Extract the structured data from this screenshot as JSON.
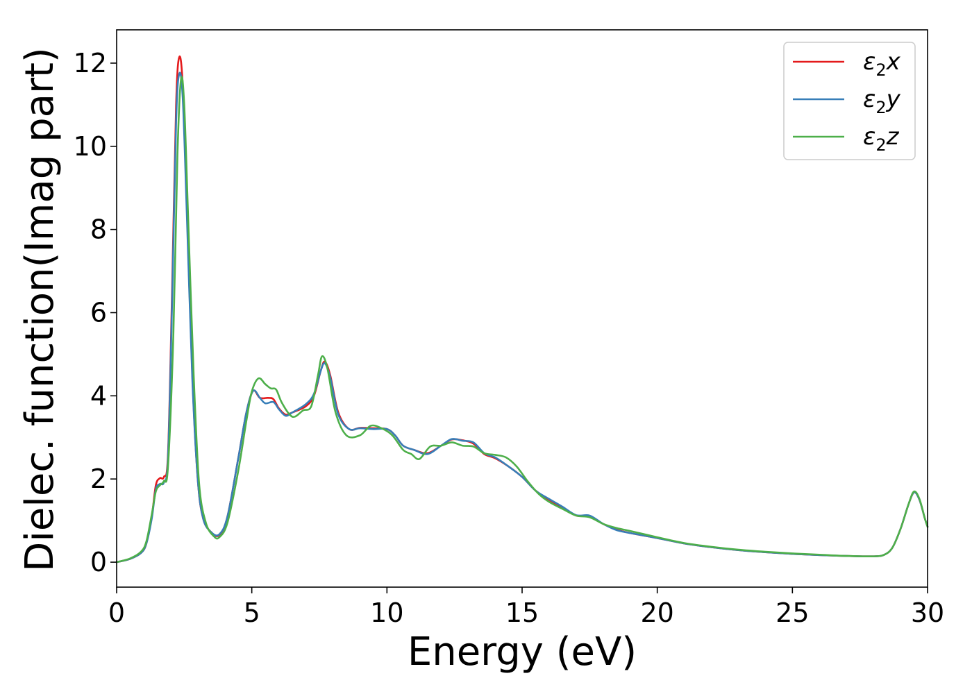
{
  "chart_data": {
    "type": "line",
    "xlabel": "Energy (eV)",
    "ylabel": "Dielec. function(Imag part)",
    "xlim": [
      0,
      30
    ],
    "ylim": [
      -0.6,
      12.8
    ],
    "xticks": [
      0,
      5,
      10,
      15,
      20,
      25,
      30
    ],
    "xtick_labels": [
      "0",
      "5",
      "10",
      "15",
      "20",
      "25",
      "30"
    ],
    "yticks": [
      0,
      2,
      4,
      6,
      8,
      10,
      12
    ],
    "ytick_labels": [
      "0",
      "2",
      "4",
      "6",
      "8",
      "10",
      "12"
    ],
    "grid": false,
    "legend_position": "top-right",
    "series": [
      {
        "name": "ε₂x",
        "legend_base": "ε",
        "legend_sub": "2",
        "legend_axis": "x",
        "color": "#e41a1c",
        "points": [
          [
            0,
            0
          ],
          [
            0.5,
            0.08
          ],
          [
            0.9,
            0.22
          ],
          [
            1.1,
            0.45
          ],
          [
            1.3,
            1.1
          ],
          [
            1.45,
            1.85
          ],
          [
            1.6,
            2.02
          ],
          [
            1.75,
            2.05
          ],
          [
            1.9,
            2.6
          ],
          [
            2.05,
            6.5
          ],
          [
            2.2,
            11.0
          ],
          [
            2.32,
            12.15
          ],
          [
            2.45,
            11.4
          ],
          [
            2.6,
            8.5
          ],
          [
            2.8,
            4.5
          ],
          [
            3.0,
            2.0
          ],
          [
            3.2,
            1.05
          ],
          [
            3.5,
            0.72
          ],
          [
            3.8,
            0.65
          ],
          [
            4.1,
            1.1
          ],
          [
            4.5,
            2.5
          ],
          [
            4.8,
            3.6
          ],
          [
            5.05,
            4.12
          ],
          [
            5.3,
            3.95
          ],
          [
            5.6,
            3.95
          ],
          [
            5.8,
            3.92
          ],
          [
            6.0,
            3.7
          ],
          [
            6.25,
            3.55
          ],
          [
            6.5,
            3.6
          ],
          [
            7.0,
            3.75
          ],
          [
            7.3,
            4.0
          ],
          [
            7.55,
            4.6
          ],
          [
            7.7,
            4.82
          ],
          [
            7.9,
            4.5
          ],
          [
            8.2,
            3.6
          ],
          [
            8.6,
            3.2
          ],
          [
            9.0,
            3.23
          ],
          [
            9.5,
            3.22
          ],
          [
            10.0,
            3.2
          ],
          [
            10.3,
            3.05
          ],
          [
            10.6,
            2.8
          ],
          [
            11.0,
            2.7
          ],
          [
            11.5,
            2.62
          ],
          [
            12.0,
            2.8
          ],
          [
            12.4,
            2.95
          ],
          [
            12.8,
            2.93
          ],
          [
            13.2,
            2.85
          ],
          [
            13.6,
            2.6
          ],
          [
            14.0,
            2.5
          ],
          [
            14.5,
            2.3
          ],
          [
            15.0,
            2.05
          ],
          [
            15.5,
            1.72
          ],
          [
            16.0,
            1.5
          ],
          [
            16.5,
            1.3
          ],
          [
            17.0,
            1.12
          ],
          [
            17.5,
            1.1
          ],
          [
            18.0,
            0.92
          ],
          [
            18.5,
            0.78
          ],
          [
            19.0,
            0.7
          ],
          [
            20.0,
            0.58
          ],
          [
            21.0,
            0.45
          ],
          [
            22.0,
            0.36
          ],
          [
            23.0,
            0.29
          ],
          [
            24.0,
            0.24
          ],
          [
            25.0,
            0.2
          ],
          [
            26.0,
            0.17
          ],
          [
            27.0,
            0.15
          ],
          [
            28.0,
            0.14
          ],
          [
            28.4,
            0.18
          ],
          [
            28.7,
            0.35
          ],
          [
            29.0,
            0.8
          ],
          [
            29.3,
            1.4
          ],
          [
            29.5,
            1.68
          ],
          [
            29.7,
            1.5
          ],
          [
            29.9,
            1.05
          ],
          [
            30.0,
            0.85
          ]
        ]
      },
      {
        "name": "ε₂y",
        "legend_base": "ε",
        "legend_sub": "2",
        "legend_axis": "y",
        "color": "#377eb8",
        "points": [
          [
            0,
            0
          ],
          [
            0.5,
            0.08
          ],
          [
            0.9,
            0.22
          ],
          [
            1.1,
            0.45
          ],
          [
            1.3,
            1.05
          ],
          [
            1.45,
            1.75
          ],
          [
            1.6,
            1.88
          ],
          [
            1.75,
            1.92
          ],
          [
            1.9,
            2.5
          ],
          [
            2.05,
            6.2
          ],
          [
            2.2,
            10.6
          ],
          [
            2.32,
            11.75
          ],
          [
            2.45,
            11.1
          ],
          [
            2.6,
            8.3
          ],
          [
            2.8,
            4.4
          ],
          [
            3.0,
            2.0
          ],
          [
            3.2,
            1.05
          ],
          [
            3.5,
            0.72
          ],
          [
            3.8,
            0.67
          ],
          [
            4.1,
            1.1
          ],
          [
            4.5,
            2.5
          ],
          [
            4.8,
            3.6
          ],
          [
            5.05,
            4.12
          ],
          [
            5.3,
            3.95
          ],
          [
            5.5,
            3.82
          ],
          [
            5.8,
            3.85
          ],
          [
            6.0,
            3.68
          ],
          [
            6.25,
            3.52
          ],
          [
            6.5,
            3.6
          ],
          [
            7.0,
            3.8
          ],
          [
            7.3,
            4.05
          ],
          [
            7.55,
            4.6
          ],
          [
            7.7,
            4.78
          ],
          [
            7.9,
            4.45
          ],
          [
            8.2,
            3.55
          ],
          [
            8.6,
            3.2
          ],
          [
            9.0,
            3.22
          ],
          [
            9.5,
            3.2
          ],
          [
            10.0,
            3.2
          ],
          [
            10.3,
            3.05
          ],
          [
            10.6,
            2.8
          ],
          [
            11.0,
            2.7
          ],
          [
            11.5,
            2.6
          ],
          [
            12.0,
            2.8
          ],
          [
            12.4,
            2.96
          ],
          [
            12.8,
            2.92
          ],
          [
            13.2,
            2.88
          ],
          [
            13.6,
            2.62
          ],
          [
            14.0,
            2.52
          ],
          [
            14.5,
            2.3
          ],
          [
            15.0,
            2.05
          ],
          [
            15.5,
            1.72
          ],
          [
            16.0,
            1.52
          ],
          [
            16.5,
            1.33
          ],
          [
            17.0,
            1.13
          ],
          [
            17.5,
            1.12
          ],
          [
            18.0,
            0.92
          ],
          [
            18.5,
            0.77
          ],
          [
            19.0,
            0.7
          ],
          [
            20.0,
            0.58
          ],
          [
            21.0,
            0.45
          ],
          [
            22.0,
            0.36
          ],
          [
            23.0,
            0.29
          ],
          [
            24.0,
            0.24
          ],
          [
            25.0,
            0.2
          ],
          [
            26.0,
            0.17
          ],
          [
            27.0,
            0.15
          ],
          [
            28.0,
            0.14
          ],
          [
            28.4,
            0.18
          ],
          [
            28.7,
            0.35
          ],
          [
            29.0,
            0.8
          ],
          [
            29.3,
            1.4
          ],
          [
            29.5,
            1.68
          ],
          [
            29.7,
            1.5
          ],
          [
            29.9,
            1.05
          ],
          [
            30.0,
            0.85
          ]
        ]
      },
      {
        "name": "ε₂z",
        "legend_base": "ε",
        "legend_sub": "2",
        "legend_axis": "z",
        "color": "#4daf4a",
        "points": [
          [
            0,
            0
          ],
          [
            0.5,
            0.09
          ],
          [
            0.9,
            0.25
          ],
          [
            1.1,
            0.5
          ],
          [
            1.3,
            1.15
          ],
          [
            1.45,
            1.7
          ],
          [
            1.6,
            1.85
          ],
          [
            1.75,
            1.95
          ],
          [
            1.9,
            2.3
          ],
          [
            2.1,
            5.5
          ],
          [
            2.25,
            9.8
          ],
          [
            2.38,
            11.6
          ],
          [
            2.5,
            11.0
          ],
          [
            2.65,
            8.2
          ],
          [
            2.85,
            4.5
          ],
          [
            3.05,
            1.9
          ],
          [
            3.3,
            0.95
          ],
          [
            3.6,
            0.62
          ],
          [
            3.8,
            0.6
          ],
          [
            4.1,
            0.95
          ],
          [
            4.5,
            2.2
          ],
          [
            4.8,
            3.4
          ],
          [
            5.0,
            4.1
          ],
          [
            5.25,
            4.42
          ],
          [
            5.5,
            4.28
          ],
          [
            5.7,
            4.18
          ],
          [
            5.9,
            4.15
          ],
          [
            6.1,
            3.85
          ],
          [
            6.4,
            3.55
          ],
          [
            6.6,
            3.5
          ],
          [
            6.9,
            3.65
          ],
          [
            7.2,
            3.75
          ],
          [
            7.45,
            4.5
          ],
          [
            7.6,
            4.95
          ],
          [
            7.8,
            4.65
          ],
          [
            8.1,
            3.6
          ],
          [
            8.5,
            3.05
          ],
          [
            9.0,
            3.05
          ],
          [
            9.4,
            3.28
          ],
          [
            9.8,
            3.22
          ],
          [
            10.2,
            3.05
          ],
          [
            10.6,
            2.7
          ],
          [
            10.9,
            2.6
          ],
          [
            11.2,
            2.48
          ],
          [
            11.6,
            2.78
          ],
          [
            12.0,
            2.8
          ],
          [
            12.4,
            2.88
          ],
          [
            12.8,
            2.8
          ],
          [
            13.2,
            2.78
          ],
          [
            13.6,
            2.62
          ],
          [
            14.0,
            2.58
          ],
          [
            14.4,
            2.52
          ],
          [
            14.8,
            2.3
          ],
          [
            15.2,
            1.95
          ],
          [
            15.6,
            1.65
          ],
          [
            16.0,
            1.45
          ],
          [
            16.5,
            1.28
          ],
          [
            17.0,
            1.12
          ],
          [
            17.5,
            1.08
          ],
          [
            18.0,
            0.92
          ],
          [
            18.5,
            0.82
          ],
          [
            19.0,
            0.75
          ],
          [
            20.0,
            0.6
          ],
          [
            21.0,
            0.46
          ],
          [
            22.0,
            0.37
          ],
          [
            23.0,
            0.3
          ],
          [
            24.0,
            0.25
          ],
          [
            25.0,
            0.21
          ],
          [
            26.0,
            0.18
          ],
          [
            27.0,
            0.15
          ],
          [
            28.0,
            0.14
          ],
          [
            28.4,
            0.18
          ],
          [
            28.7,
            0.35
          ],
          [
            29.0,
            0.8
          ],
          [
            29.3,
            1.4
          ],
          [
            29.5,
            1.7
          ],
          [
            29.7,
            1.52
          ],
          [
            29.9,
            1.05
          ],
          [
            30.0,
            0.85
          ]
        ]
      }
    ]
  }
}
